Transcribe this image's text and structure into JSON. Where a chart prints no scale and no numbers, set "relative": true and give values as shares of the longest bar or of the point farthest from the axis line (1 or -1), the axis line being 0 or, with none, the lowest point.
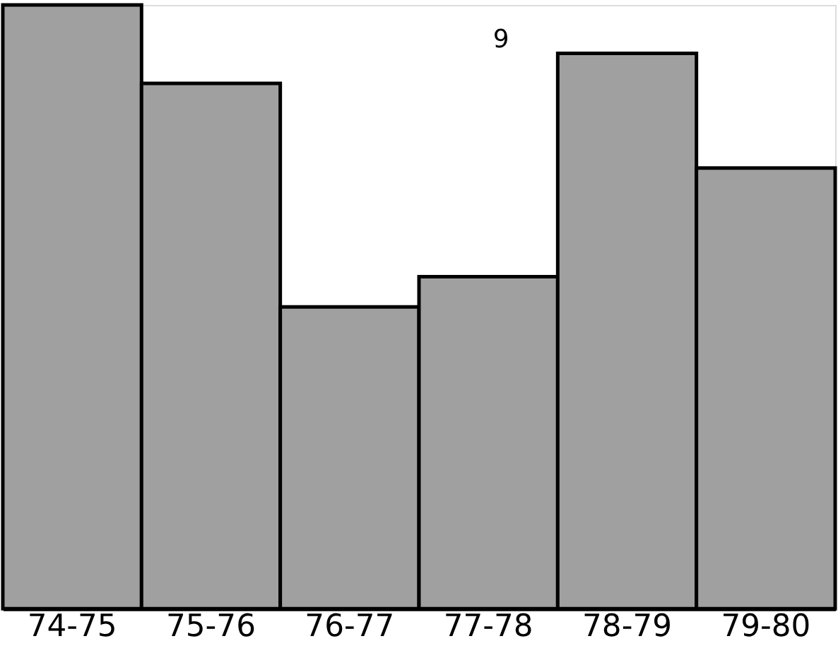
{
  "chart_data": {
    "type": "bar",
    "relative": true,
    "categories": [
      "74-75",
      "75-76",
      "76-77",
      "77-78",
      "78-79",
      "79-80"
    ],
    "values": [
      1,
      0.87,
      0.5,
      0.55,
      0.92,
      0.73
    ],
    "color": "#a0a0a0",
    "annotations": [
      "9"
    ],
    "grid": false
  }
}
